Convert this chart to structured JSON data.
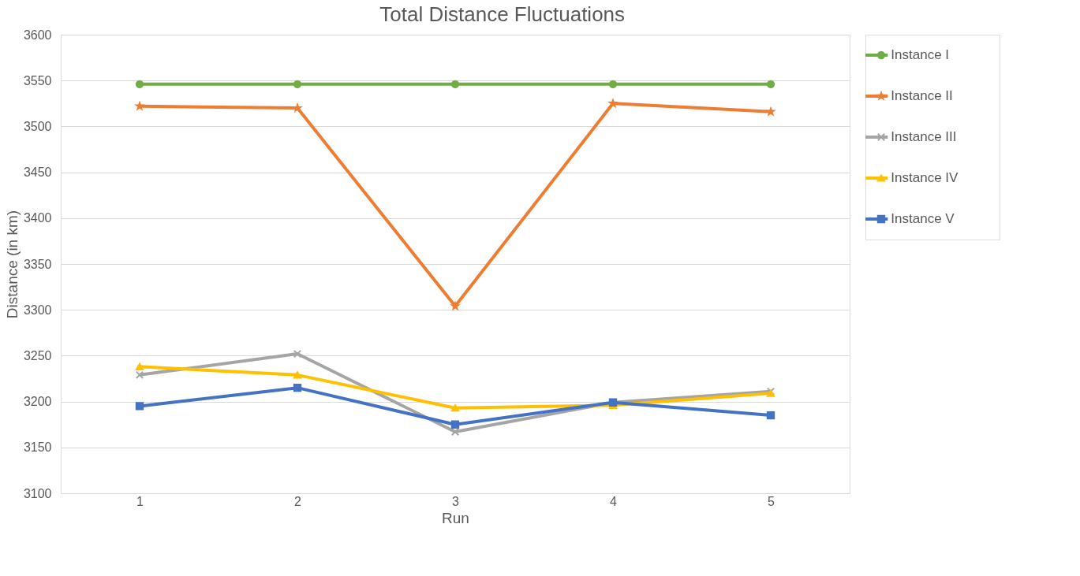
{
  "chart_data": {
    "type": "line",
    "title": "Total Distance Fluctuations",
    "xlabel": "Run",
    "ylabel": "Distance (in km)",
    "categories": [
      "1",
      "2",
      "3",
      "4",
      "5"
    ],
    "series": [
      {
        "name": "Instance I",
        "color": "#70ad47",
        "marker": "circle",
        "values": [
          3546,
          3546,
          3546,
          3546,
          3546
        ]
      },
      {
        "name": "Instance II",
        "color": "#ed7d31",
        "marker": "star",
        "values": [
          3522,
          3520,
          3304,
          3525,
          3516
        ]
      },
      {
        "name": "Instance III",
        "color": "#a5a5a5",
        "marker": "cross",
        "values": [
          3229,
          3252,
          3167,
          3199,
          3211
        ]
      },
      {
        "name": "Instance IV",
        "color": "#ffc000",
        "marker": "triangle",
        "values": [
          3238,
          3229,
          3193,
          3196,
          3209
        ]
      },
      {
        "name": "Instance V",
        "color": "#4472c4",
        "marker": "square",
        "values": [
          3195,
          3215,
          3175,
          3199,
          3185
        ]
      }
    ],
    "ylim": [
      3100,
      3600
    ],
    "yticks": [
      3100,
      3150,
      3200,
      3250,
      3300,
      3350,
      3400,
      3450,
      3500,
      3550,
      3600
    ],
    "grid": "y",
    "legend": "right",
    "line_style": "solid"
  }
}
